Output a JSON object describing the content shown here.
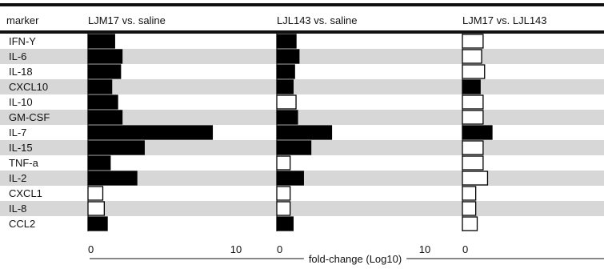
{
  "chart_data": {
    "type": "bar",
    "orientation": "horizontal",
    "row_header": "marker",
    "categories": [
      "IFN-Y",
      "IL-6",
      "IL-18",
      "CXCL10",
      "IL-10",
      "GM-CSF",
      "IL-7",
      "IL-15",
      "TNF-a",
      "IL-2",
      "CXCL1",
      "IL-8",
      "CCL2"
    ],
    "xlabel": "fold-change (Log10)",
    "panels": [
      {
        "title": "LJM17 vs. saline",
        "xlim": [
          0,
          10
        ],
        "ticks": [
          "0",
          "10"
        ],
        "values": [
          1.8,
          2.3,
          2.2,
          1.6,
          2.0,
          2.3,
          8.4,
          3.8,
          1.5,
          3.3,
          1.0,
          1.1,
          1.3
        ],
        "filled": [
          true,
          true,
          true,
          true,
          true,
          true,
          true,
          true,
          true,
          true,
          false,
          false,
          true
        ]
      },
      {
        "title": "LJL143 vs. saline",
        "xlim": [
          0,
          10
        ],
        "ticks": [
          "0",
          "10"
        ],
        "values": [
          1.3,
          1.5,
          1.2,
          1.1,
          1.3,
          1.4,
          3.7,
          2.3,
          0.9,
          1.8,
          0.9,
          0.9,
          1.1
        ],
        "filled": [
          true,
          true,
          true,
          true,
          false,
          true,
          true,
          true,
          false,
          true,
          false,
          false,
          true
        ]
      },
      {
        "title": "LJM17 vs. LJL143",
        "xlim": [
          0,
          10
        ],
        "ticks": [
          "0"
        ],
        "values": [
          1.4,
          1.3,
          1.5,
          1.2,
          1.4,
          1.4,
          2.0,
          1.4,
          1.4,
          1.7,
          0.9,
          0.9,
          1.0
        ],
        "filled": [
          false,
          false,
          false,
          true,
          false,
          false,
          true,
          false,
          false,
          false,
          false,
          false,
          false
        ]
      }
    ],
    "colors": {
      "filled": "#000000",
      "open": "#ffffff",
      "stripe": "#d7d7d7",
      "rule": "#111111"
    }
  }
}
